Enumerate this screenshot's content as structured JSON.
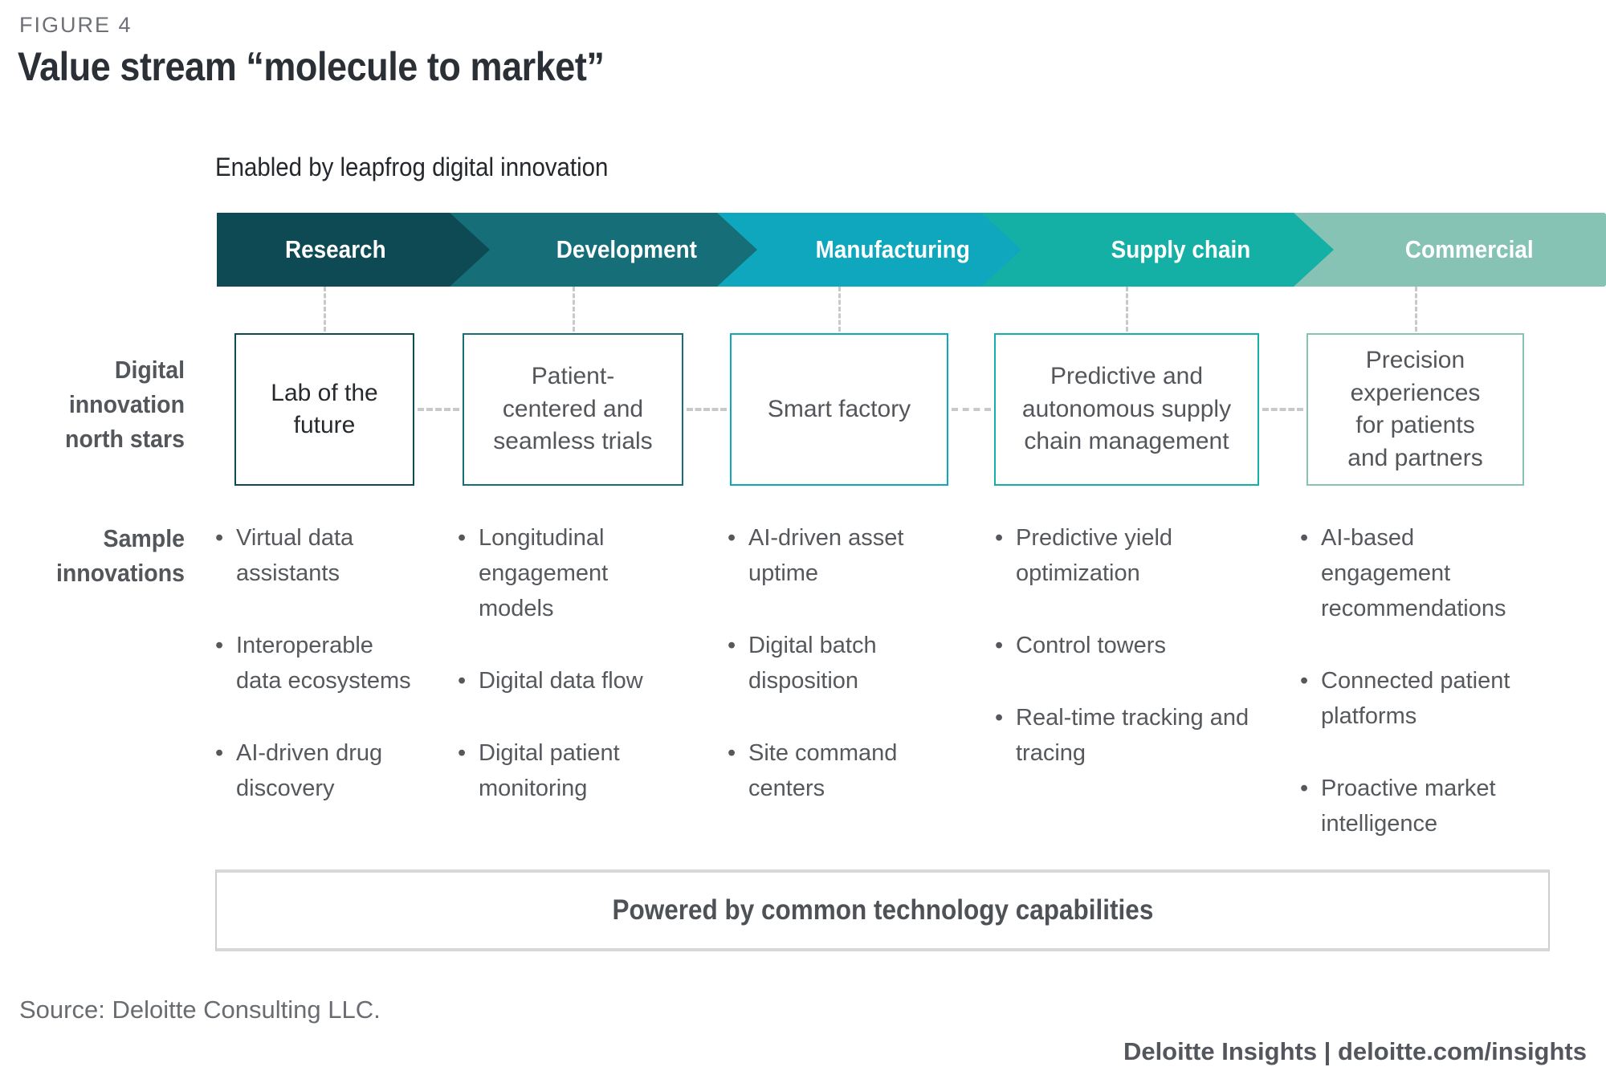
{
  "figure": {
    "label": "FIGURE 4",
    "title": "Value stream “molecule to market”",
    "subtitle": "Enabled by leapfrog digital innovation"
  },
  "row_labels": {
    "north_stars": "Digital\ninnovation\nnorth stars",
    "innovations": "Sample\ninnovations"
  },
  "glyphs": {
    "bullet": "•"
  },
  "colors": {
    "research": "#0e4a54",
    "development": "#156e78",
    "manufacturing": "#0ea7bd",
    "supply_chain": "#14b0a5",
    "commercial": "#86c3b4",
    "connector_gray": "#c7c9cb",
    "text_gray": "#53565a"
  },
  "stages": [
    {
      "label": "Research",
      "color": "#0e4a54",
      "north_star": "Lab of the future",
      "innovations": [
        "Virtual data assistants",
        "Interoperable data ecosystems",
        "AI-driven drug discovery"
      ]
    },
    {
      "label": "Development",
      "color": "#156e78",
      "north_star": "Patient-centered and seamless trials",
      "innovations": [
        "Longitudinal engagement models",
        "Digital data flow",
        "Digital patient monitoring"
      ]
    },
    {
      "label": "Manufacturing",
      "color": "#0ea7bd",
      "north_star": "Smart factory",
      "innovations": [
        "AI-driven asset uptime",
        "Digital batch disposition",
        "Site command centers"
      ]
    },
    {
      "label": "Supply chain",
      "color": "#14b0a5",
      "north_star": "Predictive and autonomous supply chain management",
      "innovations": [
        "Predictive yield optimization",
        "Control towers",
        "Real-time tracking and tracing"
      ]
    },
    {
      "label": "Commercial",
      "color": "#86c3b4",
      "north_star": "Precision experiences for patients and partners",
      "innovations": [
        "AI-based engagement recommendations",
        "Connected patient platforms",
        "Proactive market intelligence"
      ]
    }
  ],
  "footer": {
    "powered": "Powered by common technology capabilities",
    "source": "Source: Deloitte Consulting LLC.",
    "brand": "Deloitte Insights | deloitte.com/insights"
  }
}
